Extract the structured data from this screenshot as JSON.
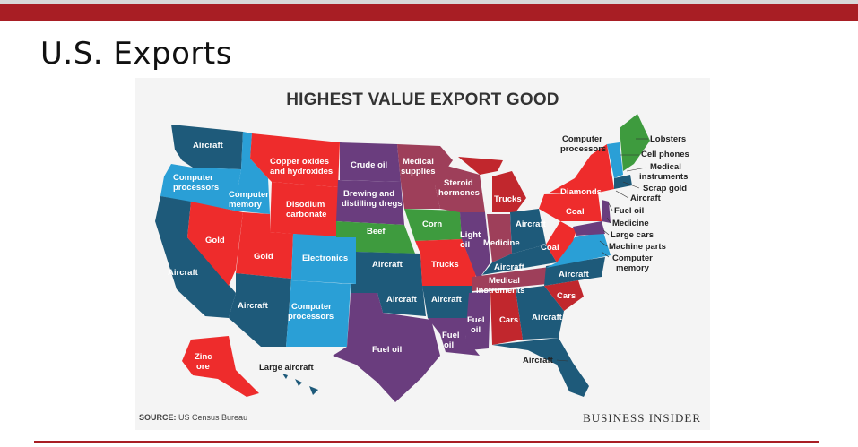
{
  "slide": {
    "title": "U.S. Exports"
  },
  "map": {
    "heading": "HIGHEST VALUE EXPORT GOOD",
    "source_label": "SOURCE:",
    "source_text": "US Census Bureau",
    "brand": "BUSINESS INSIDER",
    "colors": {
      "aircraft": "#1e5a7a",
      "computer": "#2a9fd6",
      "red": "#ee2c2c",
      "purple": "#6a3d7e",
      "mauve": "#9e3f5a",
      "green": "#3e9b3e",
      "darkred": "#c1272d"
    },
    "labels": {
      "wa": "Aircraft",
      "or": "Computer processors",
      "id": "Computer memory",
      "mt": "Copper oxides and hydroxides",
      "wy": "Disodium carbonate",
      "nd": "Crude oil",
      "sd": "Brewing and distilling dregs",
      "mn": "Medical supplies",
      "wi": "Steroid hormones",
      "mi": "Trucks",
      "ia": "Corn",
      "ne": "Beef",
      "nv": "Gold",
      "ut": "Gold",
      "co": "Electronics",
      "ca": "Aircraft",
      "az": "Aircraft",
      "nm": "Computer processors",
      "ks": "Aircraft",
      "mo": "Trucks",
      "il": "Light oil",
      "in": "Medicine",
      "oh": "Aircraft",
      "ky": "Aircraft",
      "tn": "Medical instruments",
      "ok": "Aircraft",
      "ar": "Aircraft",
      "tx": "Fuel oil",
      "la": "Fuel oil",
      "ms": "Fuel oil",
      "al": "Cars",
      "ga": "Aircraft",
      "sc": "Cars",
      "nc": "Aircraft",
      "fl": "Aircraft",
      "pa": "Coal",
      "wv": "Coal",
      "ny": "Diamonds",
      "ak": "Zinc ore",
      "hi": "Large aircraft",
      "ne_states": "Computer processors",
      "me": "Lobsters",
      "nh": "Cell phones",
      "ma": "Medical instruments",
      "vt": "Scrap gold",
      "ri": "Aircraft",
      "ct": "Fuel oil",
      "nj": "Medicine",
      "de": "Large cars",
      "md": "Machine parts",
      "va": "Computer memory"
    }
  }
}
